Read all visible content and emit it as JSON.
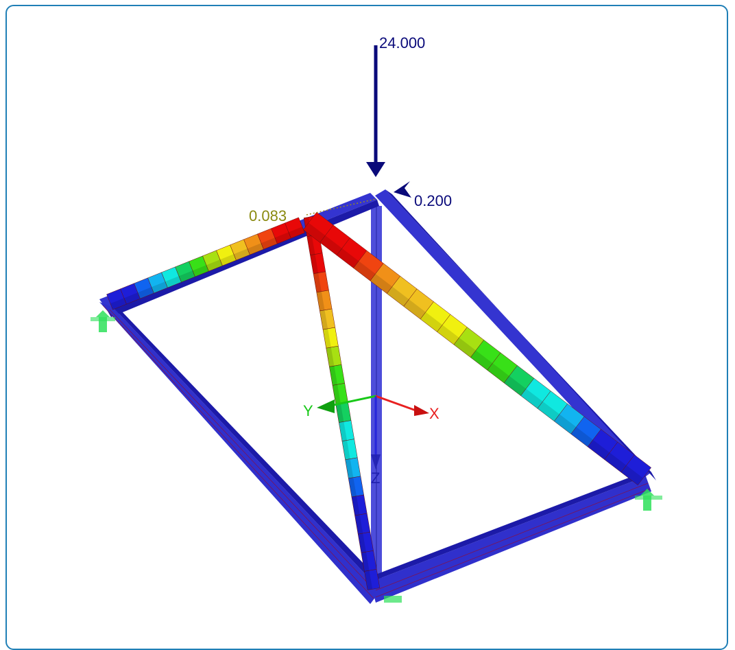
{
  "view": {
    "title": "",
    "load_vertical_label": "24.000",
    "load_moment_label": "0.200",
    "max_result_label": "0.083",
    "colors": {
      "frame_border": "#1f7fb6",
      "member_blue": "#2d2ec8",
      "member_dark": "#1c1aa8",
      "load_arrow": "#0a0a7a",
      "support_green": "#2ee05a",
      "result_label": "#8a8a10"
    },
    "result_scale": [
      "#1e1ed8",
      "#1064f0",
      "#12b4f0",
      "#10e8e0",
      "#14d060",
      "#38e018",
      "#a8e012",
      "#f0f010",
      "#f0c020",
      "#f09018",
      "#f04410",
      "#e80808"
    ]
  },
  "axes": {
    "x_label": "X",
    "y_label": "Y",
    "z_label": "Z",
    "x_color": "#e82020",
    "y_color": "#18c818",
    "z_color": "#2020e0"
  },
  "icons": {
    "supports": [
      "support-icon-left",
      "support-icon-right",
      "support-icon-bottom"
    ],
    "coordinate_axes": "axis-triad-icon"
  }
}
